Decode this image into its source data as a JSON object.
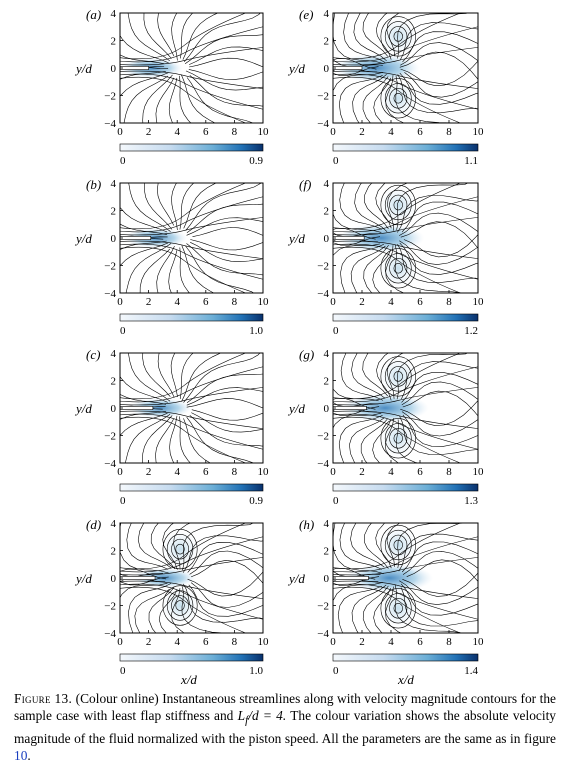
{
  "figure": {
    "panels": [
      {
        "label": "(a)",
        "colorbar_max": "0.9",
        "vortices": []
      },
      {
        "label": "(b)",
        "colorbar_max": "1.0",
        "vortices": []
      },
      {
        "label": "(c)",
        "colorbar_max": "0.9",
        "vortices": []
      },
      {
        "label": "(d)",
        "colorbar_max": "1.0",
        "vortices": [
          [
            4.2,
            2.1
          ],
          [
            4.2,
            -2.0
          ]
        ]
      },
      {
        "label": "(e)",
        "colorbar_max": "1.1",
        "vortices": [
          [
            4.5,
            2.3
          ],
          [
            4.5,
            -2.2
          ]
        ]
      },
      {
        "label": "(f)",
        "colorbar_max": "1.2",
        "vortices": [
          [
            4.5,
            2.4
          ],
          [
            4.5,
            -2.2
          ]
        ]
      },
      {
        "label": "(g)",
        "colorbar_max": "1.3",
        "vortices": [
          [
            4.5,
            2.3
          ],
          [
            4.5,
            -2.2
          ]
        ]
      },
      {
        "label": "(h)",
        "colorbar_max": "1.4",
        "vortices": [
          [
            4.5,
            2.4
          ],
          [
            4.5,
            -2.2
          ]
        ]
      }
    ],
    "x_ticks": [
      "0",
      "2",
      "4",
      "6",
      "8",
      "10"
    ],
    "y_ticks": [
      "4",
      "2",
      "0",
      "−2",
      "−4"
    ],
    "colorbar_min": "0",
    "xlabel": "x/d",
    "ylabel": "y/d",
    "colors": {
      "colormap_low": "#f4f8fc",
      "colormap_high": "#08306b",
      "flow_blue": "#4a90c8",
      "streamline": "#000000"
    }
  },
  "caption": {
    "label": "Figure 13.",
    "text_1": "(Colour online) Instantaneous streamlines along with velocity magnitude contours for the sample case with least flap stiffness and",
    "math": "L",
    "math_sub": "f",
    "math_rest": "/d = 4.",
    "text_2": "The colour variation shows the absolute velocity magnitude of the fluid normalized with the piston speed. All the parameters are the same as in figure",
    "ref": "10",
    "text_3": "."
  }
}
